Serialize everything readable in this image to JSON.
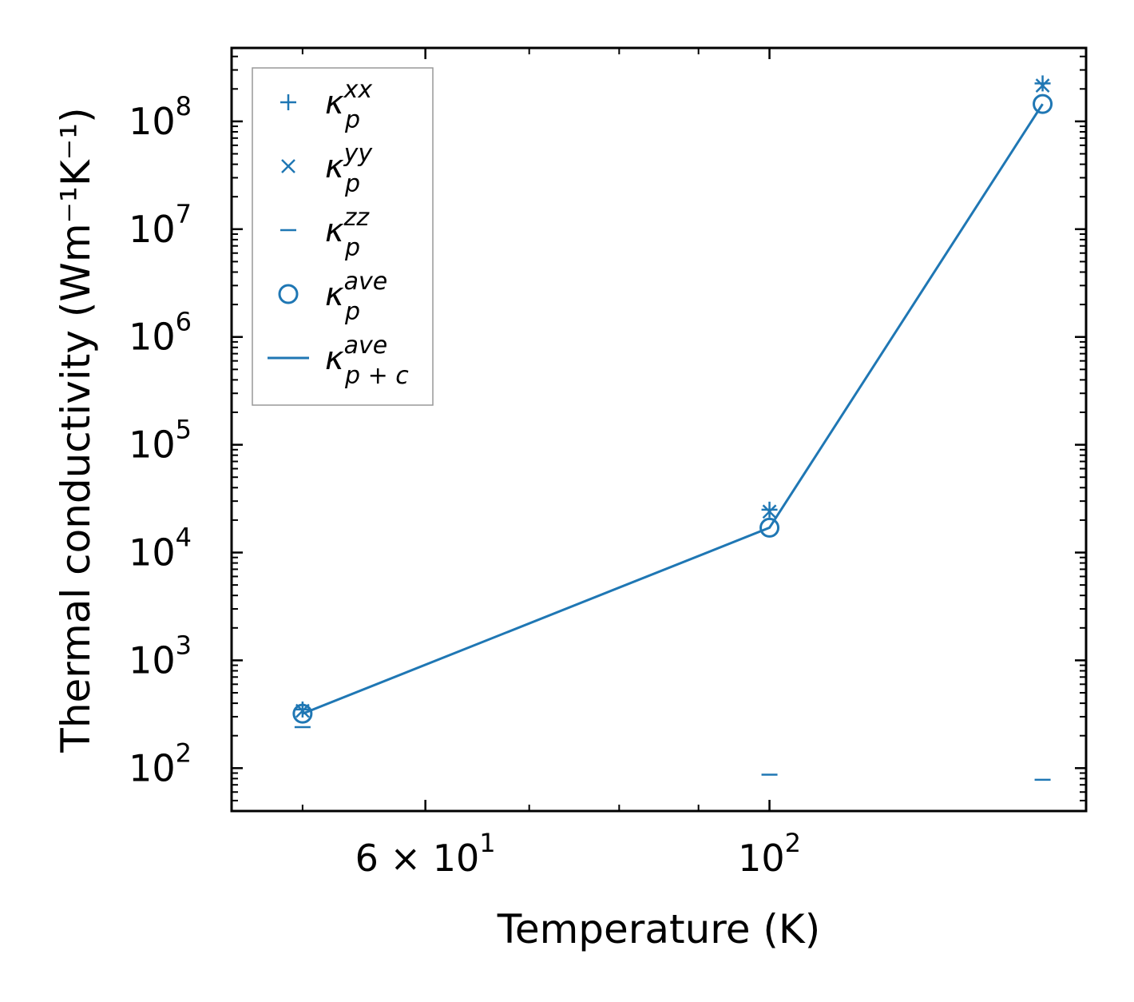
{
  "chart_data": {
    "type": "scatter",
    "xscale": "log",
    "yscale": "log",
    "xlabel": "Temperature (K)",
    "ylabel": "Thermal conductivity (Wm⁻¹K⁻¹)",
    "xlim": [
      45,
      160
    ],
    "ylim": [
      40,
      480000000
    ],
    "x_ticks": [
      {
        "value": 60,
        "label": "6 × 10",
        "exp": "1"
      },
      {
        "value": 100,
        "label": "10",
        "exp": "2"
      }
    ],
    "y_ticks": [
      {
        "value": 100,
        "label": "10",
        "exp": "2"
      },
      {
        "value": 1000,
        "label": "10",
        "exp": "3"
      },
      {
        "value": 10000,
        "label": "10",
        "exp": "4"
      },
      {
        "value": 100000,
        "label": "10",
        "exp": "5"
      },
      {
        "value": 1000000,
        "label": "10",
        "exp": "6"
      },
      {
        "value": 10000000,
        "label": "10",
        "exp": "7"
      },
      {
        "value": 100000000,
        "label": "10",
        "exp": "8"
      }
    ],
    "color": "#1f77b4",
    "x": [
      50,
      100,
      150
    ],
    "series": [
      {
        "name": "κ_p^xx",
        "base": "κ",
        "sub": "p",
        "sup": "xx",
        "marker": "plus",
        "values": [
          350,
          25000,
          225000000
        ]
      },
      {
        "name": "κ_p^yy",
        "base": "κ",
        "sub": "p",
        "sup": "yy",
        "marker": "x",
        "values": [
          340,
          24000,
          215000000
        ]
      },
      {
        "name": "κ_p^zz",
        "base": "κ",
        "sub": "p",
        "sup": "zz",
        "marker": "hline",
        "values": [
          240,
          87,
          78
        ]
      },
      {
        "name": "κ_p^ave",
        "base": "κ",
        "sub": "p",
        "sup": "ave",
        "marker": "circle",
        "values": [
          320,
          17000,
          145000000
        ]
      },
      {
        "name": "κ_p+c^ave",
        "base": "κ",
        "sub": "p + c",
        "sup": "ave",
        "marker": "line",
        "values": [
          320,
          17000,
          145000000
        ]
      }
    ],
    "legend_position": "upper-left",
    "grid": false
  }
}
